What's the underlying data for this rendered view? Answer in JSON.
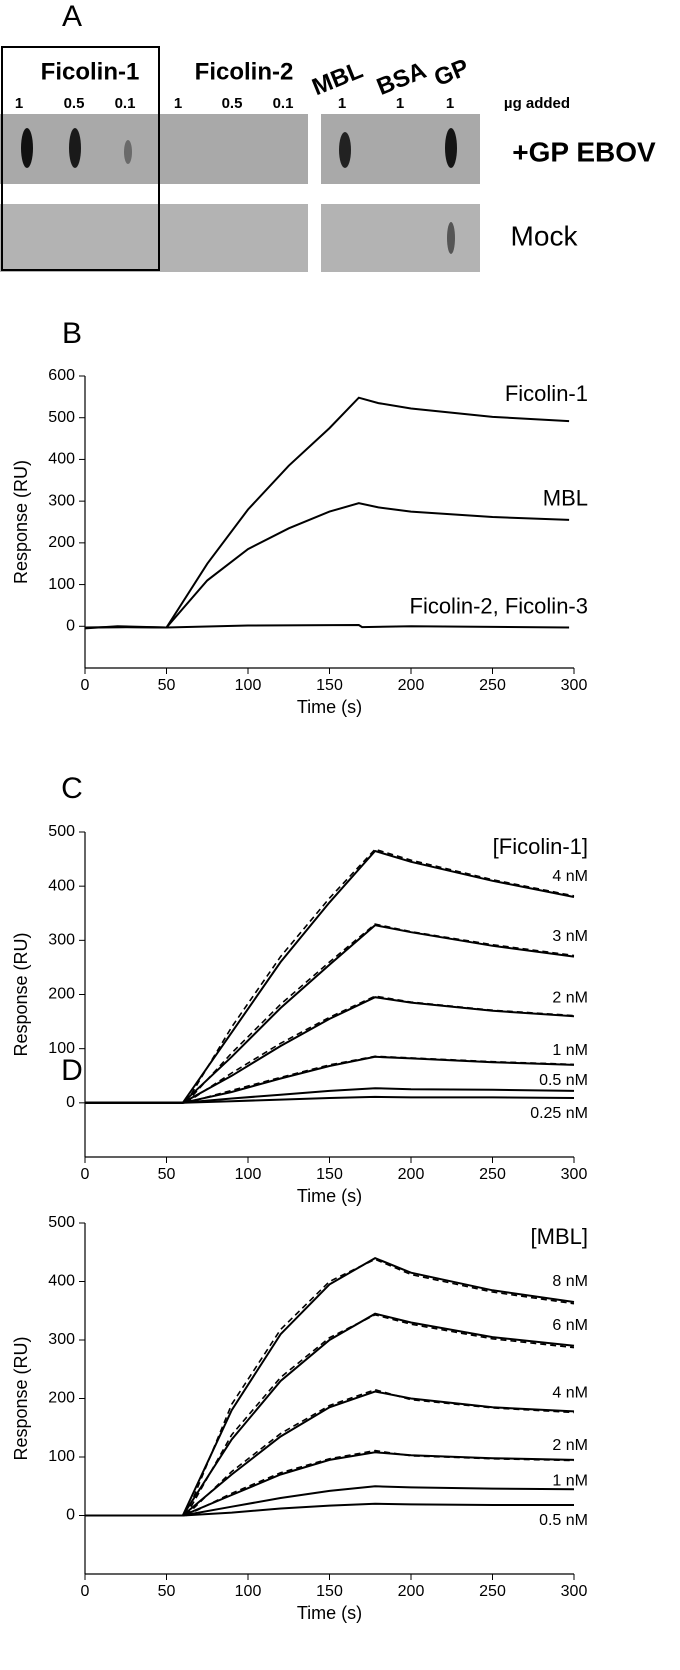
{
  "panel_a": {
    "label": "A",
    "groups": [
      "Ficolin-1",
      "Ficolin-2",
      "MBL",
      "BSA",
      "GP"
    ],
    "lanes": [
      "1",
      "0.5",
      "0.1",
      "1",
      "0.5",
      "0.1",
      "1",
      "1",
      "1"
    ],
    "unit": "µg added",
    "rows": [
      "+GP EBOV",
      "Mock"
    ]
  },
  "chart_data": [
    {
      "type": "line",
      "panel_label": "B",
      "xlabel": "Time (s)",
      "ylabel": "Response (RU)",
      "xlim": [
        0,
        300
      ],
      "xticks": [
        0,
        50,
        100,
        150,
        200,
        250,
        300
      ],
      "ylim": [
        -100,
        600
      ],
      "yticks": [
        0,
        100,
        200,
        300,
        400,
        500,
        600
      ],
      "series": [
        {
          "name": "Ficolin-1",
          "color": "#000000",
          "x": [
            0,
            25,
            50,
            75,
            100,
            125,
            150,
            168,
            180,
            200,
            250,
            297
          ],
          "values": [
            -3,
            -2,
            -3,
            150,
            280,
            385,
            475,
            548,
            535,
            522,
            502,
            492
          ]
        },
        {
          "name": "MBL",
          "color": "#000000",
          "x": [
            0,
            25,
            50,
            75,
            100,
            125,
            150,
            168,
            180,
            200,
            250,
            297
          ],
          "values": [
            -3,
            -2,
            -3,
            110,
            185,
            235,
            275,
            295,
            285,
            275,
            262,
            255
          ]
        },
        {
          "name": "Ficolin-2, Ficolin-3",
          "color": "#000000",
          "x": [
            0,
            20,
            50,
            100,
            168,
            170,
            200,
            297
          ],
          "values": [
            -5,
            0,
            -3,
            2,
            3,
            -2,
            0,
            -3
          ]
        }
      ]
    },
    {
      "type": "line",
      "panel_label": "C",
      "xlabel": "Time (s)",
      "ylabel": "Response (RU)",
      "annotation": "[Ficolin-1]",
      "xlim": [
        0,
        300
      ],
      "xticks": [
        0,
        50,
        100,
        150,
        200,
        250,
        300
      ],
      "ylim": [
        -100,
        500
      ],
      "yticks": [
        0,
        100,
        200,
        300,
        400,
        500
      ],
      "series": [
        {
          "name": "4 nM",
          "color": "#000000",
          "x": [
            0,
            60,
            90,
            120,
            150,
            178,
            200,
            250,
            300
          ],
          "values": [
            0,
            0,
            130,
            260,
            370,
            465,
            445,
            410,
            380
          ]
        },
        {
          "name": "3 nM",
          "color": "#000000",
          "x": [
            0,
            60,
            90,
            120,
            150,
            178,
            200,
            250,
            300
          ],
          "values": [
            0,
            0,
            85,
            175,
            255,
            328,
            315,
            290,
            270
          ]
        },
        {
          "name": "2 nM",
          "color": "#000000",
          "x": [
            0,
            60,
            90,
            120,
            150,
            178,
            200,
            250,
            300
          ],
          "values": [
            0,
            0,
            50,
            105,
            155,
            195,
            185,
            170,
            160
          ]
        },
        {
          "name": "1 nM",
          "color": "#000000",
          "x": [
            0,
            60,
            90,
            120,
            150,
            178,
            200,
            250,
            300
          ],
          "values": [
            0,
            0,
            20,
            45,
            68,
            85,
            82,
            75,
            70
          ]
        },
        {
          "name": "0.5 nM",
          "color": "#000000",
          "x": [
            0,
            60,
            90,
            120,
            150,
            178,
            200,
            250,
            300
          ],
          "values": [
            0,
            0,
            8,
            15,
            22,
            27,
            25,
            24,
            22
          ]
        },
        {
          "name": "0.25 nM",
          "color": "#000000",
          "x": [
            0,
            60,
            90,
            120,
            150,
            178,
            200,
            250,
            300
          ],
          "values": [
            0,
            0,
            3,
            6,
            9,
            11,
            10,
            10,
            9
          ]
        },
        {
          "color": "#000000",
          "dash": true,
          "x": [
            62,
            90,
            120,
            150,
            178,
            200,
            250,
            300
          ],
          "values": [
            0,
            140,
            270,
            378,
            468,
            448,
            412,
            382
          ]
        },
        {
          "color": "#000000",
          "dash": true,
          "x": [
            62,
            90,
            120,
            150,
            178,
            200,
            250,
            300
          ],
          "values": [
            0,
            92,
            182,
            260,
            330,
            316,
            292,
            272
          ]
        },
        {
          "color": "#000000",
          "dash": true,
          "x": [
            62,
            90,
            120,
            150,
            178,
            200,
            250,
            300
          ],
          "values": [
            0,
            55,
            110,
            158,
            197,
            186,
            171,
            161
          ]
        },
        {
          "color": "#000000",
          "dash": true,
          "x": [
            62,
            90,
            120,
            150,
            178,
            200,
            250,
            300
          ],
          "values": [
            0,
            23,
            47,
            70,
            86,
            83,
            76,
            71
          ]
        }
      ]
    },
    {
      "type": "line",
      "panel_label": "D",
      "xlabel": "Time (s)",
      "ylabel": "Response (RU)",
      "annotation": "[MBL]",
      "xlim": [
        0,
        300
      ],
      "xticks": [
        0,
        50,
        100,
        150,
        200,
        250,
        300
      ],
      "ylim": [
        -100,
        500
      ],
      "yticks": [
        0,
        100,
        200,
        300,
        400,
        500
      ],
      "series": [
        {
          "name": "8 nM",
          "color": "#000000",
          "x": [
            0,
            60,
            90,
            120,
            150,
            178,
            200,
            250,
            300
          ],
          "values": [
            0,
            0,
            180,
            310,
            395,
            440,
            415,
            385,
            365
          ]
        },
        {
          "name": "6 nM",
          "color": "#000000",
          "x": [
            0,
            60,
            90,
            120,
            150,
            178,
            200,
            250,
            300
          ],
          "values": [
            0,
            0,
            130,
            230,
            300,
            345,
            330,
            305,
            290
          ]
        },
        {
          "name": "4 nM",
          "color": "#000000",
          "x": [
            0,
            60,
            90,
            120,
            150,
            178,
            200,
            250,
            300
          ],
          "values": [
            0,
            0,
            70,
            135,
            185,
            212,
            200,
            185,
            178
          ]
        },
        {
          "name": "2 nM",
          "color": "#000000",
          "x": [
            0,
            60,
            90,
            120,
            150,
            178,
            200,
            250,
            300
          ],
          "values": [
            0,
            0,
            35,
            70,
            95,
            108,
            103,
            98,
            95
          ]
        },
        {
          "name": "1 nM",
          "color": "#000000",
          "x": [
            0,
            60,
            90,
            120,
            150,
            178,
            200,
            250,
            300
          ],
          "values": [
            0,
            0,
            15,
            30,
            42,
            50,
            48,
            46,
            45
          ]
        },
        {
          "name": "0.5 nM",
          "color": "#000000",
          "x": [
            0,
            60,
            90,
            120,
            150,
            178,
            200,
            250,
            300
          ],
          "values": [
            0,
            0,
            5,
            12,
            17,
            20,
            19,
            18,
            18
          ]
        },
        {
          "color": "#000000",
          "dash": true,
          "x": [
            62,
            90,
            120,
            150,
            178,
            200,
            250,
            300
          ],
          "values": [
            0,
            190,
            318,
            400,
            438,
            412,
            382,
            362
          ]
        },
        {
          "color": "#000000",
          "dash": true,
          "x": [
            62,
            90,
            120,
            150,
            178,
            200,
            250,
            300
          ],
          "values": [
            0,
            138,
            236,
            304,
            343,
            327,
            302,
            287
          ]
        },
        {
          "color": "#000000",
          "dash": true,
          "x": [
            62,
            90,
            120,
            150,
            178,
            200,
            250,
            300
          ],
          "values": [
            0,
            75,
            140,
            188,
            215,
            198,
            184,
            176
          ]
        },
        {
          "color": "#000000",
          "dash": true,
          "x": [
            62,
            90,
            120,
            150,
            178,
            200,
            250,
            300
          ],
          "values": [
            0,
            38,
            73,
            97,
            111,
            102,
            97,
            94
          ]
        }
      ]
    }
  ]
}
